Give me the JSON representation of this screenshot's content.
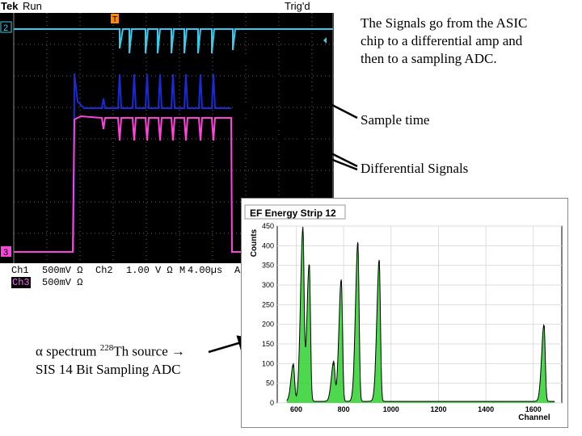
{
  "scope": {
    "brand": "Tek",
    "run_state": "Run",
    "trigger_state": "Trig'd",
    "ch2_marker": "2",
    "ch3_marker": "3",
    "trigger_marker": "T",
    "readout": {
      "ch1_label": "Ch1",
      "ch1_scale": "500mV Ω",
      "ch2_label": "Ch2",
      "ch2_scale": "1.00 V Ω",
      "time_label": "M",
      "time_scale": "4.00µs",
      "trig_label": "A",
      "ch3_label": "Ch3",
      "ch3_scale": "500mV Ω"
    },
    "colors": {
      "ch1": "#1a2ad8",
      "ch2": "#33ccee",
      "ch3": "#ff44dd",
      "trigger": "#ff8800"
    }
  },
  "annotations": {
    "description_line1": "The Signals go from the ASIC",
    "description_line2": "chip to a differential amp and",
    "description_line3": "then to a sampling ADC.",
    "sample_time": "Sample time",
    "differential_signals": "Differential Signals",
    "spectrum_alpha": "α",
    "spectrum_text": " spectrum ",
    "spectrum_isotope_mass": "228",
    "spectrum_isotope": "Th source",
    "spectrum_arrow": " →",
    "adc_line": "SIS 14 Bit Sampling ADC"
  },
  "chart_data": {
    "type": "area",
    "title": "EF Energy Strip 12",
    "xlabel": "Channel",
    "ylabel": "Counts",
    "xlim": [
      520,
      1720
    ],
    "ylim": [
      0,
      450
    ],
    "xticks": [
      600,
      800,
      1000,
      1200,
      1400,
      1600
    ],
    "yticks": [
      0,
      50,
      100,
      150,
      200,
      250,
      300,
      350,
      400,
      450
    ],
    "peaks": [
      {
        "x": 588,
        "height": 95
      },
      {
        "x": 628,
        "height": 435
      },
      {
        "x": 655,
        "height": 350
      },
      {
        "x": 758,
        "height": 100
      },
      {
        "x": 790,
        "height": 310
      },
      {
        "x": 860,
        "height": 405
      },
      {
        "x": 950,
        "height": 360
      },
      {
        "x": 1645,
        "height": 195
      }
    ],
    "colors": {
      "fill": "#2fd12f",
      "line": "#000000"
    }
  }
}
